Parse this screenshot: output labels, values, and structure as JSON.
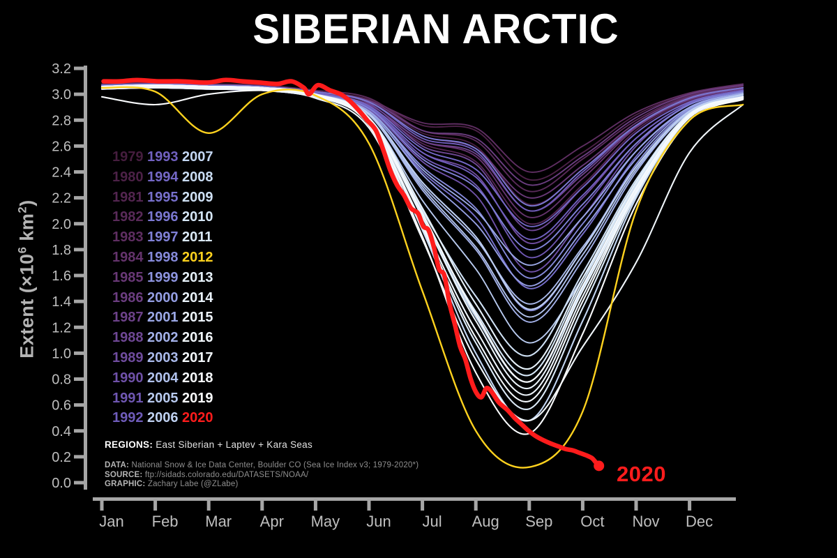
{
  "title": "SIBERIAN ARCTIC",
  "labels": {
    "year_2020": "2020",
    "regions_label": "REGIONS:",
    "regions_text": " East Siberian + Laptev + Kara Seas",
    "data_label": "DATA:",
    "data_text": " National Snow & Ice Data Center, Boulder CO (Sea Ice Index v3; 1979-2020*)",
    "source_label": "SOURCE:",
    "source_text": " ftp://sidads.colorado.edu/DATASETS/NOAA/",
    "graphic_label": "GRAPHIC:",
    "graphic_text": " Zachary Labe (@ZLabe)"
  },
  "colors": {
    "background": "#000000",
    "title_text": "#ffffff",
    "axis": "#a6a6a6",
    "tick_label": "#bfbfbf",
    "highlight_2012": "#ffd21e",
    "highlight_2020": "#ff1c1c"
  },
  "chart_data": {
    "type": "line",
    "title": "SIBERIAN ARCTIC",
    "ylabel_parts": {
      "pre": "Extent (×10",
      "sup1": "6",
      "mid": " km",
      "sup2": "2",
      "post": ")"
    },
    "ylim": [
      0.0,
      3.2
    ],
    "y_ticks": [
      3.2,
      3.0,
      2.8,
      2.6,
      2.4,
      2.2,
      2.0,
      1.8,
      1.6,
      1.4,
      1.2,
      1.0,
      0.8,
      0.6,
      0.4,
      0.2,
      0.0
    ],
    "months": [
      "Jan",
      "Feb",
      "Mar",
      "Apr",
      "May",
      "Jun",
      "Jul",
      "Aug",
      "Sep",
      "Oct",
      "Nov",
      "Dec"
    ],
    "series_note": "monthly values Jan1..Dec1 plus Dec31; 2020 is [day-of-year, value] pairs ending early Oct",
    "years": [
      {
        "y": 1979,
        "c": "#451d3e",
        "v": [
          3.05,
          3.06,
          3.05,
          3.04,
          3.0,
          2.94,
          2.7,
          2.6,
          2.15,
          2.42,
          2.78,
          2.98,
          3.05
        ]
      },
      {
        "y": 1980,
        "c": "#4c2147",
        "v": [
          3.07,
          3.08,
          3.07,
          3.06,
          3.02,
          2.96,
          2.76,
          2.72,
          2.34,
          2.55,
          2.84,
          3.0,
          3.07
        ]
      },
      {
        "y": 1981,
        "c": "#532550",
        "v": [
          3.04,
          3.05,
          3.04,
          3.03,
          2.99,
          2.9,
          2.62,
          2.48,
          2.0,
          2.3,
          2.72,
          2.95,
          3.03
        ]
      },
      {
        "y": 1982,
        "c": "#592a59",
        "v": [
          3.08,
          3.09,
          3.08,
          3.07,
          3.03,
          2.97,
          2.72,
          2.64,
          2.25,
          2.5,
          2.8,
          2.99,
          3.06
        ]
      },
      {
        "y": 1983,
        "c": "#5f2e62",
        "v": [
          3.06,
          3.07,
          3.06,
          3.05,
          3.01,
          2.95,
          2.78,
          2.74,
          2.4,
          2.6,
          2.86,
          3.01,
          3.08
        ]
      },
      {
        "y": 1984,
        "c": "#64336c",
        "v": [
          3.05,
          3.06,
          3.05,
          3.04,
          3.0,
          2.92,
          2.64,
          2.52,
          2.05,
          2.35,
          2.74,
          2.96,
          3.04
        ]
      },
      {
        "y": 1985,
        "c": "#683876",
        "v": [
          3.07,
          3.08,
          3.07,
          3.06,
          3.02,
          2.94,
          2.68,
          2.58,
          2.2,
          2.45,
          2.78,
          2.98,
          3.05
        ]
      },
      {
        "y": 1986,
        "c": "#6b3d80",
        "v": [
          3.06,
          3.07,
          3.06,
          3.05,
          3.01,
          2.95,
          2.72,
          2.66,
          2.3,
          2.52,
          2.82,
          3.0,
          3.07
        ]
      },
      {
        "y": 1987,
        "c": "#6d428a",
        "v": [
          3.05,
          3.06,
          3.05,
          3.04,
          3.0,
          2.92,
          2.64,
          2.54,
          2.1,
          2.38,
          2.75,
          2.96,
          3.04
        ]
      },
      {
        "y": 1988,
        "c": "#6e4794",
        "v": [
          3.07,
          3.08,
          3.07,
          3.06,
          3.02,
          2.93,
          2.6,
          2.46,
          1.95,
          2.28,
          2.7,
          2.94,
          3.03
        ]
      },
      {
        "y": 1989,
        "c": "#6f4c9e",
        "v": [
          3.04,
          3.05,
          3.04,
          3.03,
          2.99,
          2.9,
          2.55,
          2.38,
          1.85,
          2.2,
          2.66,
          2.93,
          3.02
        ]
      },
      {
        "y": 1990,
        "c": "#6f51a8",
        "v": [
          3.06,
          3.07,
          3.06,
          3.05,
          3.0,
          2.88,
          2.48,
          2.22,
          1.63,
          2.05,
          2.6,
          2.92,
          3.02
        ]
      },
      {
        "y": 1991,
        "c": "#6f57b2",
        "v": [
          3.05,
          3.06,
          3.05,
          3.04,
          3.0,
          2.9,
          2.52,
          2.3,
          1.74,
          2.12,
          2.62,
          2.92,
          3.02
        ]
      },
      {
        "y": 1992,
        "c": "#6f5cba",
        "v": [
          3.07,
          3.08,
          3.07,
          3.06,
          3.02,
          2.94,
          2.66,
          2.56,
          2.1,
          2.4,
          2.76,
          2.97,
          3.05
        ]
      },
      {
        "y": 1993,
        "c": "#7161c0",
        "v": [
          3.05,
          3.06,
          3.05,
          3.04,
          3.0,
          2.9,
          2.55,
          2.36,
          1.88,
          2.22,
          2.66,
          2.93,
          3.03
        ]
      },
      {
        "y": 1994,
        "c": "#7468c6",
        "v": [
          3.06,
          3.07,
          3.06,
          3.05,
          3.01,
          2.91,
          2.58,
          2.42,
          1.98,
          2.28,
          2.7,
          2.94,
          3.03
        ]
      },
      {
        "y": 1995,
        "c": "#7770cc",
        "v": [
          3.04,
          3.05,
          3.04,
          3.03,
          2.98,
          2.85,
          2.4,
          2.05,
          1.5,
          1.92,
          2.52,
          2.9,
          3.01
        ]
      },
      {
        "y": 1996,
        "c": "#7b78d2",
        "v": [
          3.07,
          3.08,
          3.07,
          3.06,
          3.02,
          2.94,
          2.68,
          2.58,
          2.14,
          2.42,
          2.76,
          2.97,
          3.05
        ]
      },
      {
        "y": 1997,
        "c": "#8081d7",
        "v": [
          3.05,
          3.06,
          3.05,
          3.04,
          3.0,
          2.89,
          2.5,
          2.28,
          1.8,
          2.15,
          2.62,
          2.92,
          3.02
        ]
      },
      {
        "y": 1998,
        "c": "#868adb",
        "v": [
          3.06,
          3.07,
          3.06,
          3.05,
          3.0,
          2.87,
          2.44,
          2.12,
          1.58,
          2.0,
          2.56,
          2.9,
          3.01
        ]
      },
      {
        "y": 1999,
        "c": "#8d94df",
        "v": [
          3.04,
          3.05,
          3.04,
          3.03,
          2.98,
          2.84,
          2.32,
          1.9,
          1.33,
          1.8,
          2.46,
          2.88,
          3.0
        ]
      },
      {
        "y": 2000,
        "c": "#949ee3",
        "v": [
          3.06,
          3.07,
          3.06,
          3.05,
          3.0,
          2.86,
          2.38,
          2.0,
          1.52,
          1.95,
          2.5,
          2.89,
          3.0
        ]
      },
      {
        "y": 2001,
        "c": "#9ba8e6",
        "v": [
          3.05,
          3.06,
          3.05,
          3.04,
          2.99,
          2.87,
          2.42,
          2.1,
          1.68,
          2.05,
          2.56,
          2.9,
          3.01
        ]
      },
      {
        "y": 2002,
        "c": "#a3b1e9",
        "v": [
          3.06,
          3.07,
          3.06,
          3.05,
          3.0,
          2.84,
          2.26,
          1.8,
          1.24,
          1.72,
          2.4,
          2.86,
          2.99
        ]
      },
      {
        "y": 2003,
        "c": "#aabaeb",
        "v": [
          3.04,
          3.05,
          3.04,
          3.03,
          2.98,
          2.85,
          2.3,
          1.88,
          1.38,
          1.82,
          2.44,
          2.87,
          3.0
        ]
      },
      {
        "y": 2004,
        "c": "#b1c2ed",
        "v": [
          3.06,
          3.07,
          3.06,
          3.05,
          3.0,
          2.84,
          2.28,
          1.82,
          1.28,
          1.76,
          2.42,
          2.86,
          2.99
        ]
      },
      {
        "y": 2005,
        "c": "#b8caef",
        "v": [
          3.05,
          3.06,
          3.05,
          3.04,
          2.98,
          2.82,
          2.18,
          1.65,
          1.08,
          1.58,
          2.32,
          2.84,
          2.98
        ]
      },
      {
        "y": 2006,
        "c": "#bfd1f1",
        "v": [
          3.06,
          3.07,
          3.06,
          3.05,
          3.0,
          2.85,
          2.32,
          1.9,
          1.34,
          1.8,
          2.44,
          2.87,
          3.0
        ]
      },
      {
        "y": 2007,
        "c": "#c3d6f2",
        "v": [
          3.05,
          3.06,
          3.05,
          3.04,
          2.99,
          2.78,
          1.95,
          1.0,
          0.48,
          1.25,
          2.2,
          2.82,
          2.97
        ]
      },
      {
        "y": 2008,
        "c": "#c9dcf3",
        "v": [
          3.06,
          3.07,
          3.06,
          3.05,
          3.0,
          2.8,
          2.05,
          1.28,
          0.78,
          1.5,
          2.28,
          2.84,
          2.98
        ]
      },
      {
        "y": 2009,
        "c": "#cfe1f5",
        "v": [
          3.05,
          3.06,
          3.05,
          3.04,
          2.99,
          2.81,
          2.1,
          1.44,
          0.98,
          1.62,
          2.34,
          2.85,
          2.98
        ]
      },
      {
        "y": 2010,
        "c": "#d5e6f6",
        "v": [
          3.06,
          3.07,
          3.06,
          3.05,
          3.0,
          2.8,
          2.06,
          1.32,
          0.83,
          1.55,
          2.3,
          2.84,
          2.98
        ]
      },
      {
        "y": 2011,
        "c": "#dbeaf8",
        "v": [
          3.05,
          3.06,
          3.05,
          3.04,
          2.98,
          2.77,
          1.96,
          1.08,
          0.57,
          1.35,
          2.22,
          2.82,
          2.97
        ]
      },
      {
        "y": 2012,
        "c": "#ffd21e",
        "v": [
          3.05,
          3.02,
          2.7,
          3.0,
          2.99,
          2.62,
          1.48,
          0.4,
          0.12,
          0.55,
          2.1,
          2.8,
          2.92
        ]
      },
      {
        "y": 2013,
        "c": "#e6f1fa",
        "v": [
          3.06,
          3.07,
          3.06,
          3.05,
          3.0,
          2.82,
          2.12,
          1.38,
          0.88,
          1.58,
          2.32,
          2.85,
          2.98
        ]
      },
      {
        "y": 2014,
        "c": "#eaf3fb",
        "v": [
          3.05,
          3.06,
          3.05,
          3.04,
          2.99,
          2.8,
          2.05,
          1.25,
          0.73,
          1.48,
          2.26,
          2.83,
          2.97
        ]
      },
      {
        "y": 2015,
        "c": "#eef5fc",
        "v": [
          3.06,
          3.07,
          3.06,
          3.05,
          3.0,
          2.79,
          2.0,
          1.18,
          0.68,
          1.44,
          2.25,
          2.83,
          2.97
        ]
      },
      {
        "y": 2016,
        "c": "#f1f7fc",
        "v": [
          3.04,
          3.05,
          3.04,
          3.03,
          2.97,
          2.74,
          1.88,
          0.95,
          0.48,
          1.05,
          1.7,
          2.55,
          2.92
        ]
      },
      {
        "y": 2017,
        "c": "#f4f9fd",
        "v": [
          3.05,
          3.06,
          3.05,
          3.04,
          2.99,
          2.78,
          1.98,
          1.12,
          0.63,
          1.4,
          2.24,
          2.82,
          2.97
        ]
      },
      {
        "y": 2018,
        "c": "#f7fafd",
        "v": [
          3.06,
          3.07,
          3.06,
          3.05,
          3.0,
          2.81,
          2.08,
          1.3,
          0.78,
          1.52,
          2.28,
          2.84,
          2.98
        ]
      },
      {
        "y": 2019,
        "c": "#fafcfe",
        "v": [
          2.98,
          2.92,
          3.0,
          3.03,
          2.99,
          2.76,
          1.9,
          0.85,
          0.38,
          1.15,
          2.15,
          2.8,
          2.96
        ]
      },
      {
        "y": 2020,
        "c": "#ff1c1c",
        "d": [
          [
            1,
            3.1
          ],
          [
            10,
            3.1
          ],
          [
            20,
            3.11
          ],
          [
            32,
            3.1
          ],
          [
            45,
            3.1
          ],
          [
            60,
            3.09
          ],
          [
            70,
            3.11
          ],
          [
            80,
            3.1
          ],
          [
            90,
            3.09
          ],
          [
            100,
            3.08
          ],
          [
            108,
            3.1
          ],
          [
            115,
            3.05
          ],
          [
            118,
            3.0
          ],
          [
            123,
            3.07
          ],
          [
            130,
            3.03
          ],
          [
            136,
            3.0
          ],
          [
            141,
            2.95
          ],
          [
            146,
            2.88
          ],
          [
            151,
            2.8
          ],
          [
            156,
            2.72
          ],
          [
            160,
            2.58
          ],
          [
            164,
            2.42
          ],
          [
            168,
            2.3
          ],
          [
            172,
            2.22
          ],
          [
            176,
            2.12
          ],
          [
            180,
            2.08
          ],
          [
            183,
            1.98
          ],
          [
            186,
            1.95
          ],
          [
            189,
            1.82
          ],
          [
            192,
            1.65
          ],
          [
            195,
            1.6
          ],
          [
            198,
            1.38
          ],
          [
            201,
            1.22
          ],
          [
            204,
            1.05
          ],
          [
            207,
            0.95
          ],
          [
            210,
            0.8
          ],
          [
            213,
            0.7
          ],
          [
            216,
            0.66
          ],
          [
            219,
            0.73
          ],
          [
            222,
            0.7
          ],
          [
            226,
            0.62
          ],
          [
            231,
            0.56
          ],
          [
            235,
            0.5
          ],
          [
            239,
            0.45
          ],
          [
            243,
            0.4
          ],
          [
            247,
            0.36
          ],
          [
            251,
            0.33
          ],
          [
            256,
            0.3
          ],
          [
            260,
            0.28
          ],
          [
            264,
            0.26
          ],
          [
            268,
            0.25
          ],
          [
            272,
            0.23
          ],
          [
            276,
            0.21
          ],
          [
            279,
            0.19
          ],
          [
            281,
            0.16
          ],
          [
            283,
            0.13
          ]
        ]
      }
    ]
  }
}
